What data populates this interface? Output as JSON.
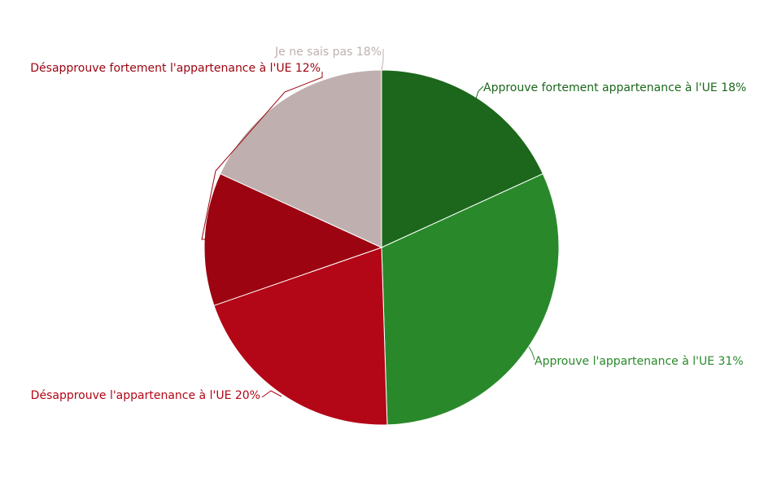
{
  "chart_data": {
    "type": "pie",
    "slices": [
      {
        "label": "Approuve fortement appartenance à l'UE",
        "value": 18,
        "text": "Approuve fortement appartenance à l'UE 18%",
        "color": "#1c671c"
      },
      {
        "label": "Approuve l'appartenance à l'UE",
        "value": 31,
        "text": "Approuve l'appartenance à l'UE 31%",
        "color": "#29892a"
      },
      {
        "label": "Désapprouve l'appartenance à l'UE",
        "value": 20,
        "text": "Désapprouve l'appartenance à l'UE 20%",
        "color": "#b30616"
      },
      {
        "label": "Désapprouve fortement l'appartenance à l'UE",
        "value": 12,
        "text": "Désapprouve fortement l'appartenance à l'UE 12%",
        "color": "#9b0410"
      },
      {
        "label": "Je ne sais pas",
        "value": 18,
        "text": "Je ne sais pas 18%",
        "color": "#bfb0af"
      }
    ],
    "start_angle": "12 o'clock",
    "direction": "clockwise",
    "legend": "none"
  }
}
